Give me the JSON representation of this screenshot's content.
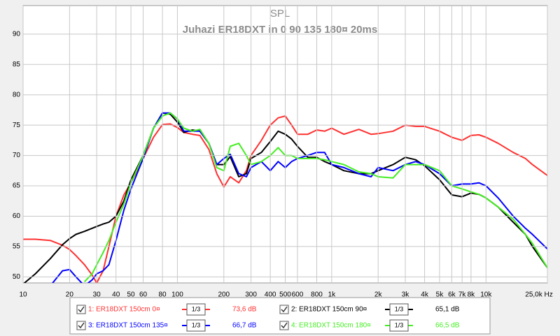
{
  "chart_data": {
    "type": "line",
    "title": "SPL",
    "subtitle": "Juhazi ER18DXT in 0 90 135 180¤ 20ms",
    "x_scale": "log",
    "grid": true,
    "xlim": [
      10,
      25000
    ],
    "ylim": [
      49,
      94.7
    ],
    "xticks": [
      10,
      20,
      30,
      40,
      50,
      60,
      80,
      100,
      200,
      300,
      400,
      500,
      600,
      800,
      {
        "value": 1000,
        "label": "1k"
      },
      {
        "value": 2000,
        "label": "2k"
      },
      {
        "value": 3000,
        "label": "3k"
      },
      {
        "value": 4000,
        "label": "4k"
      },
      {
        "value": 5000,
        "label": "5k"
      },
      {
        "value": 6000,
        "label": "6k"
      },
      {
        "value": 7000,
        "label": "7k"
      },
      {
        "value": 8000,
        "label": "8k"
      },
      {
        "value": 10000,
        "label": "10k"
      },
      {
        "value": 25000,
        "label": "25,0k Hz"
      }
    ],
    "yticks": [
      50,
      55,
      60,
      65,
      70,
      75,
      80,
      85,
      90
    ],
    "x": [
      10,
      12,
      15,
      18,
      20,
      22,
      25,
      28,
      30,
      33,
      36,
      40,
      45,
      50,
      60,
      70,
      80,
      90,
      100,
      110,
      125,
      140,
      160,
      180,
      200,
      220,
      250,
      280,
      300,
      350,
      400,
      450,
      500,
      550,
      600,
      700,
      800,
      900,
      1000,
      1200,
      1500,
      1800,
      2000,
      2500,
      3000,
      3500,
      4000,
      5000,
      6000,
      7000,
      8000,
      9000,
      10000,
      12000,
      15000,
      18000,
      20000,
      25000
    ],
    "series": [
      {
        "name": "1: ER18DXT 150cm 0¤",
        "color": "#ff3030",
        "smoothing": "1/3",
        "level": "73,6 dB",
        "values": [
          56.2,
          56.2,
          56,
          55.2,
          54.5,
          53.5,
          52,
          50.3,
          49,
          51,
          55,
          60,
          63.5,
          65.5,
          69.5,
          73,
          75.1,
          75.2,
          74.6,
          73.8,
          73.5,
          73.3,
          71,
          67,
          64.8,
          66.5,
          65.5,
          67.5,
          70,
          72.5,
          75,
          76.2,
          76.5,
          75,
          73.5,
          73.5,
          74.2,
          74,
          74.5,
          73.5,
          74.3,
          73.5,
          73.6,
          74,
          75,
          74.8,
          74.8,
          74,
          73,
          72.5,
          73.3,
          73.4,
          73,
          72,
          70.5,
          69.5,
          68.5,
          66.7
        ]
      },
      {
        "name": "2: ER18DXT 150cm 90¤",
        "color": "#000000",
        "smoothing": "1/3",
        "level": "65,1 dB",
        "values": [
          48.8,
          50.5,
          53,
          55.3,
          56.3,
          57,
          57.5,
          58,
          58.3,
          58.7,
          59,
          60,
          62.5,
          66,
          70,
          74.5,
          77,
          76.8,
          75.5,
          73.8,
          74.2,
          74,
          72,
          68.5,
          68.5,
          69.8,
          66.5,
          67,
          69.5,
          70.5,
          72.3,
          74,
          73.5,
          72.7,
          71.5,
          69.7,
          69.7,
          69,
          68.5,
          67.5,
          67,
          67,
          67.5,
          68.5,
          69.7,
          69.3,
          68.3,
          66,
          63.5,
          63.2,
          63.8,
          63.6,
          63,
          61.5,
          59,
          57,
          55,
          51.5
        ]
      },
      {
        "name": "3: ER18DXT 150cm 135¤",
        "color": "#0000ff",
        "smoothing": "1/3",
        "level": "66,7 dB",
        "values": [
          null,
          null,
          48.5,
          51,
          51.2,
          50,
          48.5,
          49.5,
          50.5,
          51,
          52,
          56,
          61,
          64.5,
          69.5,
          74.5,
          77,
          77,
          76,
          74,
          74,
          74,
          72,
          68.5,
          69.5,
          70.2,
          67,
          66.5,
          68,
          69,
          67.5,
          69,
          68,
          69,
          69.5,
          70,
          70.5,
          70.5,
          68.5,
          68,
          67,
          66.5,
          68,
          67.5,
          68.5,
          69,
          68.5,
          67,
          65,
          65.3,
          65.3,
          65.5,
          65,
          63,
          60,
          58,
          57,
          54.6
        ]
      },
      {
        "name": "4: ER18DXT 150cm 180¤",
        "color": "#44ee22",
        "smoothing": "1/3",
        "level": "66,5 dB",
        "values": [
          null,
          null,
          null,
          null,
          null,
          null,
          49.2,
          50.5,
          52,
          54,
          56,
          59,
          62,
          65.5,
          70,
          74.5,
          76.5,
          77,
          76,
          74.5,
          74,
          74.3,
          72,
          68,
          67.5,
          71.5,
          72,
          70,
          68.5,
          69,
          70,
          71.3,
          70,
          70,
          69.5,
          69.5,
          69.5,
          69.3,
          69,
          68.5,
          67.3,
          67,
          66.5,
          66.3,
          68.5,
          68.5,
          68.5,
          67.5,
          65,
          64.5,
          64,
          63.6,
          63,
          61.5,
          59.5,
          57,
          55.5,
          51.5
        ]
      }
    ]
  }
}
